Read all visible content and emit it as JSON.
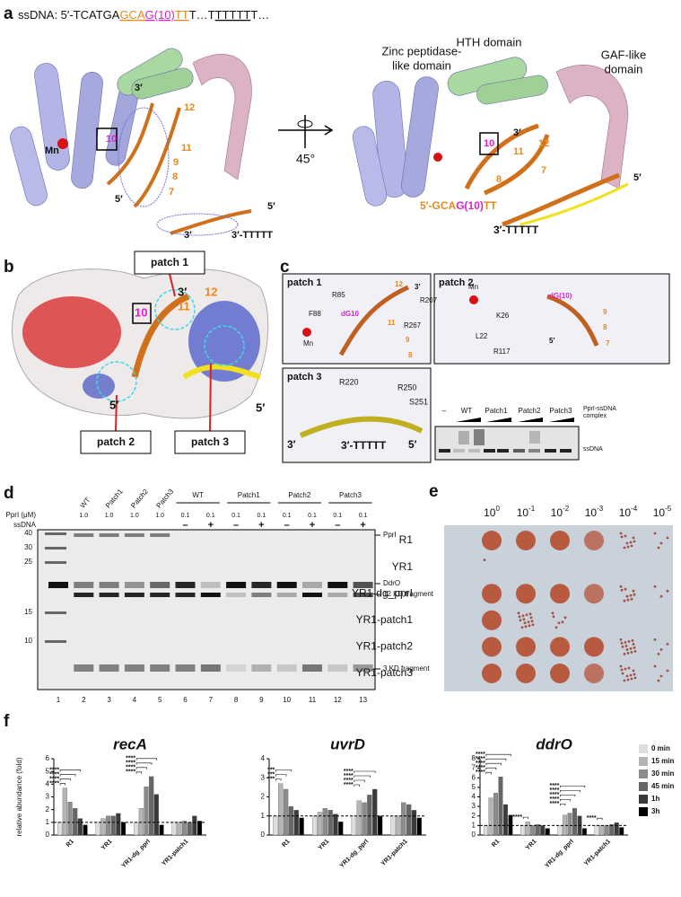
{
  "panel_a": {
    "label": "a",
    "seq": [
      "ssDNA: 5′-TCATGA",
      "GCA",
      "G(10)",
      "TT",
      "T…T",
      "TTTTT",
      "T…"
    ],
    "left_labels": [
      "3′",
      "12",
      "Mn",
      "10",
      "11",
      "9",
      "8",
      "7",
      "5′",
      "5′",
      "3′",
      "3′-TTTTT"
    ],
    "rotation": "45°",
    "domains": [
      "Zinc peptidase-",
      "like domain",
      "HTH domain",
      "GAF-like",
      "domain"
    ],
    "right_labels": [
      "3′",
      "12",
      "11",
      "10",
      "8",
      "7",
      "5′",
      "5′-",
      "GCA",
      "G(10)",
      "TT",
      "3′-TTTTT"
    ]
  },
  "panel_b": {
    "label": "b",
    "callouts": [
      "patch 1",
      "patch 2",
      "patch 3"
    ],
    "labels": [
      "3′",
      "12",
      "10",
      "11",
      "5′",
      "5′"
    ]
  },
  "panel_c": {
    "label": "c",
    "patch1": {
      "title": "patch 1",
      "labels": [
        "12",
        "3′",
        "R85",
        "R207",
        "F88",
        "dG10",
        "R267",
        "11",
        "Mn",
        "9",
        "8"
      ]
    },
    "patch2": {
      "title": "patch 2",
      "labels": [
        "Mn",
        "dG(10)",
        "K26",
        "L22",
        "R117",
        "5′",
        "9",
        "8",
        "7"
      ]
    },
    "patch3": {
      "title": "patch 3",
      "labels": [
        "R220",
        "R250",
        "S251",
        "3′",
        "3′-TTTTT",
        "5′"
      ]
    },
    "gel": {
      "lanes": [
        "–",
        "WT",
        "Patch1",
        "Patch2",
        "Patch3"
      ],
      "bands": [
        "PprI-ssDNA",
        "complex",
        "ssDNA"
      ]
    }
  },
  "panel_d": {
    "label": "d",
    "top_lanes": [
      "WT",
      "Patch1",
      "Patch2",
      "Patch3"
    ],
    "group_lanes": [
      "WT",
      "Patch1",
      "Patch2",
      "Patch3"
    ],
    "pprI_label": "PprI (μM)",
    "pprI": [
      "1.0",
      "1.0",
      "1.0",
      "1.0",
      "0.1",
      "0.1",
      "0.1",
      "0.1",
      "0.1",
      "0.1",
      "0.1",
      "0.1"
    ],
    "ssdna_label": "ssDNA",
    "ssdna": [
      "–",
      "+",
      "–",
      "+",
      "–",
      "+",
      "–",
      "+"
    ],
    "ladder": [
      "40",
      "30",
      "25",
      "15",
      "10"
    ],
    "bands": [
      "PprI",
      "DdrO",
      "12 KD fragment",
      "3 KD fragment"
    ],
    "lanes": [
      "1",
      "2",
      "3",
      "4",
      "5",
      "6",
      "7",
      "8",
      "9",
      "10",
      "11",
      "12",
      "13"
    ]
  },
  "panel_e": {
    "label": "e",
    "dilutions": [
      {
        "base": "10",
        "exponent": "0"
      },
      {
        "base": "10",
        "exponent": "-1"
      },
      {
        "base": "10",
        "exponent": "-2"
      },
      {
        "base": "10",
        "exponent": "-3"
      },
      {
        "base": "10",
        "exponent": "-4"
      },
      {
        "base": "10",
        "exponent": "-5"
      }
    ],
    "strains": [
      "R1",
      "YR1",
      "YR1-dg_pprI",
      "YR1-patch1",
      "YR1-patch2",
      "YR1-patch3"
    ]
  },
  "panel_f": {
    "label": "f"
  },
  "chart_data": [
    {
      "type": "bar",
      "title": "recA",
      "y_label": "relative abundance (fold)",
      "categories": [
        "R1",
        "YR1",
        "YR1-dg_pprI",
        "YR1-patch1"
      ],
      "ylim": [
        0,
        6
      ],
      "yticks": [
        0,
        1,
        2,
        3,
        4,
        5,
        6
      ],
      "reference_line": 1,
      "series": [
        {
          "name": "0 min",
          "color": "#dedede",
          "values": [
            1.0,
            1.0,
            1.0,
            1.0
          ]
        },
        {
          "name": "15 min",
          "color": "#b5b5b5",
          "values": [
            3.7,
            1.3,
            2.1,
            1.0
          ]
        },
        {
          "name": "30 min",
          "color": "#8c8c8c",
          "values": [
            2.6,
            1.5,
            3.8,
            1.1
          ]
        },
        {
          "name": "45 min",
          "color": "#666666",
          "values": [
            2.1,
            1.5,
            4.6,
            1.0
          ]
        },
        {
          "name": "1h",
          "color": "#3a3a3a",
          "values": [
            1.3,
            1.7,
            3.2,
            1.5
          ]
        },
        {
          "name": "3h",
          "color": "#000000",
          "values": [
            0.8,
            1.0,
            0.8,
            1.1
          ]
        }
      ],
      "annotations": [
        [
          "****",
          "****",
          "****",
          "****"
        ],
        [],
        [
          "****",
          "****",
          "****",
          "****"
        ],
        []
      ]
    },
    {
      "type": "bar",
      "title": "uvrD",
      "categories": [
        "R1",
        "YR1",
        "YR1-dg_pprI",
        "YR1-patch1"
      ],
      "ylim": [
        0,
        4
      ],
      "yticks": [
        0,
        1,
        2,
        3,
        4
      ],
      "reference_line": 1,
      "series": [
        {
          "color": "#dedede",
          "values": [
            1.0,
            1.0,
            1.0,
            1.0
          ]
        },
        {
          "color": "#b5b5b5",
          "values": [
            2.7,
            1.2,
            1.8,
            1.0
          ]
        },
        {
          "color": "#8c8c8c",
          "values": [
            2.4,
            1.4,
            1.7,
            1.7
          ]
        },
        {
          "color": "#666666",
          "values": [
            1.5,
            1.3,
            2.1,
            1.6
          ]
        },
        {
          "color": "#3a3a3a",
          "values": [
            1.3,
            1.1,
            2.4,
            1.3
          ]
        },
        {
          "color": "#000000",
          "values": [
            0.9,
            0.7,
            1.0,
            0.9
          ]
        }
      ],
      "annotations": [
        [
          "***",
          "***",
          "***"
        ],
        [],
        [
          "****",
          "****",
          "****",
          "****"
        ],
        []
      ]
    },
    {
      "type": "bar",
      "title": "ddrO",
      "categories": [
        "R1",
        "YR1",
        "YR1-dg_pprI",
        "YR1-patch1"
      ],
      "ylim": [
        0,
        8
      ],
      "yticks": [
        0,
        1,
        2,
        3,
        4,
        5,
        6,
        7,
        8
      ],
      "reference_line": 1,
      "series": [
        {
          "color": "#dedede",
          "values": [
            1.0,
            1.0,
            1.0,
            1.0
          ]
        },
        {
          "color": "#b5b5b5",
          "values": [
            3.9,
            1.4,
            2.1,
            1.0
          ]
        },
        {
          "color": "#8c8c8c",
          "values": [
            4.4,
            1.0,
            2.3,
            1.0
          ]
        },
        {
          "color": "#666666",
          "values": [
            6.1,
            1.1,
            2.8,
            1.1
          ]
        },
        {
          "color": "#3a3a3a",
          "values": [
            3.2,
            1.0,
            2.0,
            1.3
          ]
        },
        {
          "color": "#000000",
          "values": [
            2.1,
            0.7,
            0.7,
            0.8
          ]
        }
      ],
      "annotations": [
        [
          "****",
          "****",
          "****",
          "****",
          "****"
        ],
        [
          "****"
        ],
        [
          "****",
          "****",
          "****",
          "****",
          "****"
        ],
        [
          "****"
        ]
      ]
    }
  ]
}
